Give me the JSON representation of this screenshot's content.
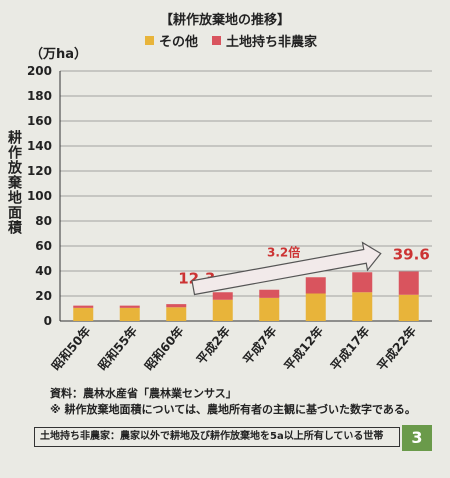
{
  "chart_data": {
    "type": "bar",
    "stacked": true,
    "title": "【耕作放棄地の推移】",
    "unit": "（万ha）",
    "ylabel": "耕作放棄地面積",
    "ylim": [
      0,
      200
    ],
    "yticks": [
      0,
      20,
      40,
      60,
      80,
      100,
      120,
      140,
      160,
      180,
      200
    ],
    "grid": true,
    "legend_position": "top-center",
    "categories": [
      "昭和50年",
      "昭和55年",
      "昭和60年",
      "平成2年",
      "平成7年",
      "平成12年",
      "平成17年",
      "平成22年"
    ],
    "series": [
      {
        "name": "その他",
        "color": "#e8b43a",
        "values": [
          10.5,
          10.5,
          11.0,
          17.0,
          18.5,
          22.0,
          23.0,
          21.0
        ]
      },
      {
        "name": "土地持ち非農家",
        "color": "#d9545e",
        "values": [
          1.8,
          1.8,
          2.5,
          6.0,
          6.5,
          13.0,
          16.0,
          18.6
        ]
      }
    ],
    "annotations": {
      "start_label": "12.3",
      "end_label": "39.6",
      "ratio_label": "3.2倍"
    }
  },
  "notes": {
    "source": "資料：農林水産省「農林業センサス」",
    "footnote": "※ 耕作放棄地面積については、農地所有者の主観に基づいた数字である。",
    "definition": "土地持ち非農家：農家以外で耕地及び耕作放棄地を5a以上所有している世帯"
  },
  "page_number": "3"
}
